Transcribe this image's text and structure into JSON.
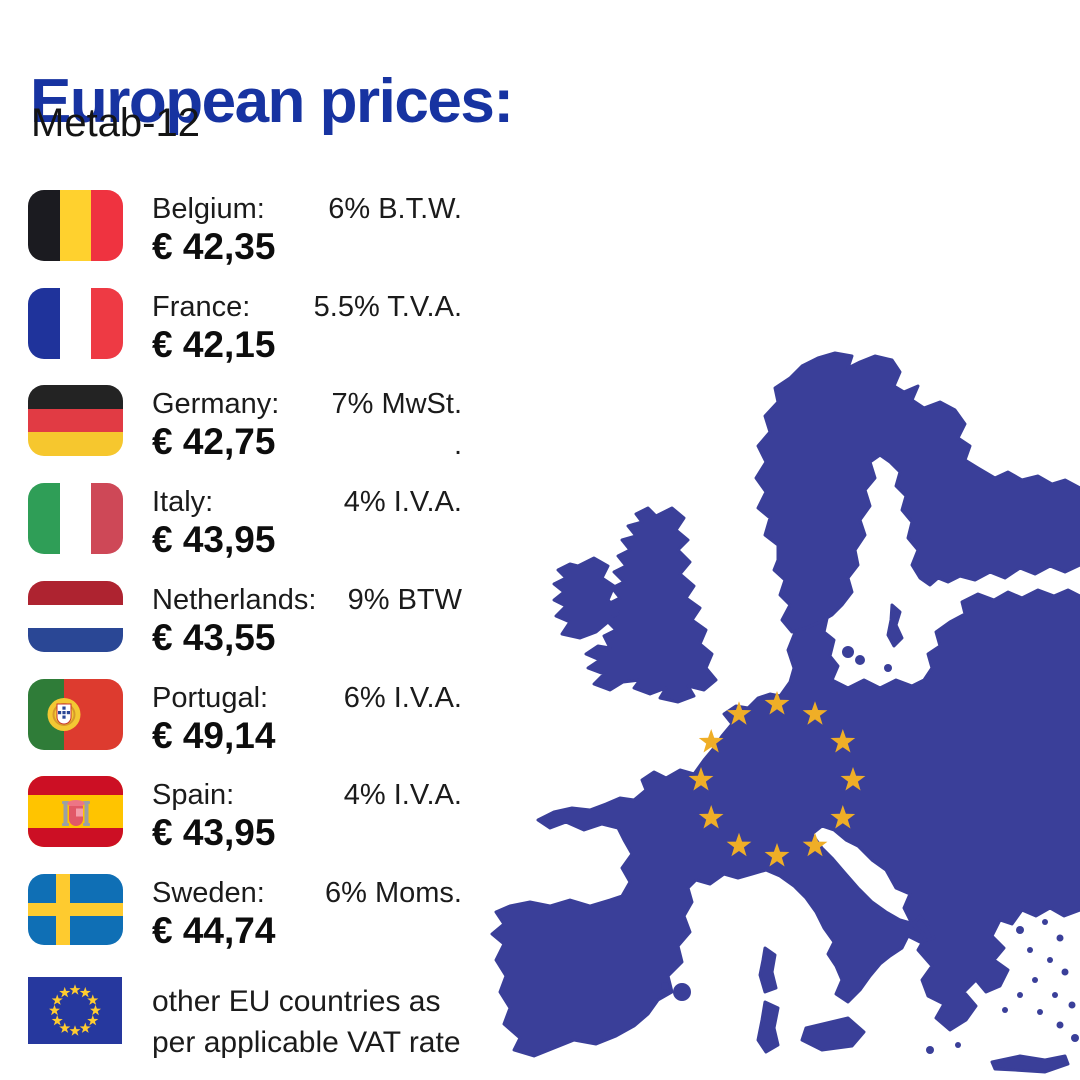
{
  "header": {
    "title": "European prices:",
    "subtitle": "Metab-12",
    "title_color": "#1733A1"
  },
  "price_list": [
    {
      "country": "Belgium",
      "label": "Belgium:",
      "vat": "6% B.T.W.",
      "price": "€ 42,35",
      "flag": "be"
    },
    {
      "country": "France",
      "label": "France:",
      "vat": "5.5% T.V.A.",
      "price": "€ 42,15",
      "flag": "fr"
    },
    {
      "country": "Germany",
      "label": "Germany:",
      "vat": "7% MwSt.",
      "vat_note": ".",
      "price": "€ 42,75",
      "flag": "de"
    },
    {
      "country": "Italy",
      "label": "Italy:",
      "vat": "4% I.V.A.",
      "price": "€ 43,95",
      "flag": "it"
    },
    {
      "country": "Netherlands",
      "label": "Netherlands:",
      "vat": "9% BTW",
      "price": "€ 43,55",
      "flag": "nl"
    },
    {
      "country": "Portugal",
      "label": "Portugal:",
      "vat": "6% I.V.A.",
      "price": "€ 49,14",
      "flag": "pt"
    },
    {
      "country": "Spain",
      "label": "Spain:",
      "vat": "4% I.V.A.",
      "price": "€ 43,95",
      "flag": "es"
    },
    {
      "country": "Sweden",
      "label": "Sweden:",
      "vat": "6% Moms.",
      "price": "€ 44,74",
      "flag": "se"
    }
  ],
  "footnote": {
    "line1": "other EU countries as",
    "line2": "per applicable VAT rate",
    "flag": "eu"
  },
  "map": {
    "name": "europe-map-with-eu-stars",
    "fill": "#3A3F99",
    "star_color": "#EFAE27",
    "star_count": 12
  },
  "flag_colors": {
    "be": {
      "bands": [
        "#1B1B20",
        "#FFD12E",
        "#EF3340"
      ]
    },
    "fr": {
      "bands": [
        "#1F339B",
        "#FFFFFF",
        "#EE3A44"
      ]
    },
    "de": {
      "bands": [
        "#232323",
        "#E13B44",
        "#F6C72E"
      ]
    },
    "it": {
      "bands": [
        "#2F9E57",
        "#FFFFFF",
        "#CE4857"
      ]
    },
    "nl": {
      "bands": [
        "#AE2330",
        "#FFFFFF",
        "#2A4795"
      ]
    },
    "pt": {
      "green": "#2F7C38",
      "red": "#DD3B2F",
      "gold": "#F3C833",
      "shield": "#FFFFFF",
      "cross": "#2A4795"
    },
    "es": {
      "red": "#CC0F24",
      "yellow": "#FFC400",
      "pillar": "#9AA0A6",
      "shield": "#E15867",
      "accent": "#F49CA9"
    },
    "se": {
      "field": "#0F6FB5",
      "cross": "#FECB2F"
    },
    "eu": {
      "field": "#26389E",
      "stars": "#FFCC30"
    }
  }
}
